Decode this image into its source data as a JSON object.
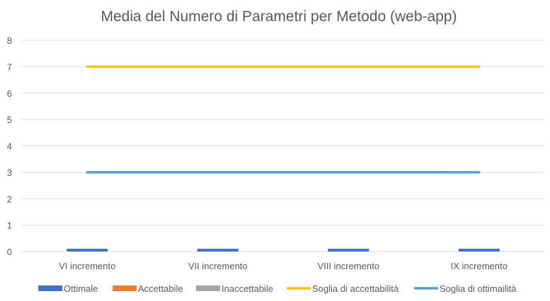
{
  "chart_data": {
    "type": "bar",
    "title": "Media del Numero di Parametri per Metodo (web-app)",
    "categories": [
      "VI incremento",
      "VII incremento",
      "VIII incremento",
      "IX incremento"
    ],
    "ylim": [
      0,
      8
    ],
    "yticks": [
      "0",
      "1",
      "2",
      "3",
      "4",
      "5",
      "6",
      "7",
      "8"
    ],
    "grid": true,
    "legend_position": "bottom",
    "series": [
      {
        "name": "Ottimale",
        "kind": "bar",
        "color": "#4472C4",
        "values": [
          0.08,
          0.1,
          0.1,
          0.1
        ]
      },
      {
        "name": "Accettabile",
        "kind": "bar",
        "color": "#ED7D31",
        "values": [
          0,
          0,
          0,
          0
        ]
      },
      {
        "name": "Inaccettabile",
        "kind": "bar",
        "color": "#A5A5A5",
        "values": [
          0,
          0,
          0,
          0
        ]
      },
      {
        "name": "Soglia di accettabilità",
        "kind": "line",
        "color": "#FFC000",
        "values": [
          7,
          7,
          7,
          7
        ]
      },
      {
        "name": "Soglia di ottimailità",
        "kind": "line",
        "color": "#5B9BD5",
        "values": [
          3,
          3,
          3,
          3
        ]
      }
    ]
  }
}
